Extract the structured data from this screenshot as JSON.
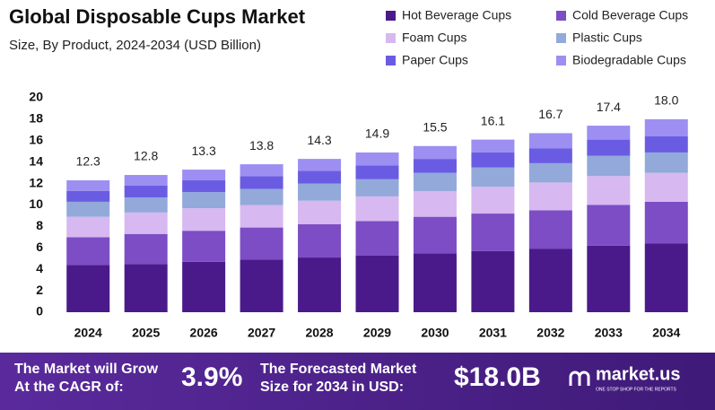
{
  "chart_data": {
    "type": "stacked-bar",
    "title": "Global Disposable Cups Market",
    "subtitle": "Size, By Product, 2024-2034 (USD Billion)",
    "categories": [
      "2024",
      "2025",
      "2026",
      "2027",
      "2028",
      "2029",
      "2030",
      "2031",
      "2032",
      "2033",
      "2034"
    ],
    "series": [
      {
        "name": "Hot Beverage Cups",
        "color": "#4a1a8a",
        "values": [
          4.4,
          4.5,
          4.7,
          4.9,
          5.1,
          5.3,
          5.5,
          5.7,
          5.9,
          6.2,
          6.4
        ]
      },
      {
        "name": "Cold Beverage Cups",
        "color": "#7c4dc4",
        "values": [
          2.6,
          2.8,
          2.9,
          3.0,
          3.1,
          3.2,
          3.4,
          3.5,
          3.6,
          3.8,
          3.9
        ]
      },
      {
        "name": "Foam Cups",
        "color": "#d7b8f0",
        "values": [
          1.9,
          2.0,
          2.1,
          2.1,
          2.2,
          2.3,
          2.4,
          2.5,
          2.6,
          2.7,
          2.7
        ]
      },
      {
        "name": "Plastic Cups",
        "color": "#92a9da",
        "values": [
          1.4,
          1.4,
          1.5,
          1.5,
          1.6,
          1.6,
          1.7,
          1.8,
          1.8,
          1.9,
          1.9
        ]
      },
      {
        "name": "Paper Cups",
        "color": "#6a5ce2",
        "values": [
          1.0,
          1.1,
          1.1,
          1.2,
          1.2,
          1.3,
          1.3,
          1.4,
          1.4,
          1.5,
          1.5
        ]
      },
      {
        "name": "Biodegradable Cups",
        "color": "#9d8ef2",
        "values": [
          1.0,
          1.0,
          1.0,
          1.1,
          1.1,
          1.2,
          1.2,
          1.2,
          1.4,
          1.3,
          1.6
        ]
      }
    ],
    "totals": [
      12.3,
      12.8,
      13.3,
      13.8,
      14.3,
      14.9,
      15.5,
      16.1,
      16.7,
      17.4,
      18.0
    ],
    "total_labels": [
      "12.3",
      "12.8",
      "13.3",
      "13.8",
      "14.3",
      "14.9",
      "15.5",
      "16.1",
      "16.7",
      "17.4",
      "18.0"
    ],
    "ylim": [
      0,
      20
    ],
    "yticks": [
      0,
      2,
      4,
      6,
      8,
      10,
      12,
      14,
      16,
      18,
      20
    ],
    "grid": false
  },
  "footer": {
    "cagr_text_1": "The Market will Grow",
    "cagr_text_2": "At the CAGR of:",
    "cagr": "3.9%",
    "forecast_text_1": "The Forecasted Market",
    "forecast_text_2": "Size for 2034 in USD:",
    "forecast": "$18.0B",
    "brand": "market.us",
    "tagline": "ONE STOP SHOP FOR THE REPORTS"
  }
}
